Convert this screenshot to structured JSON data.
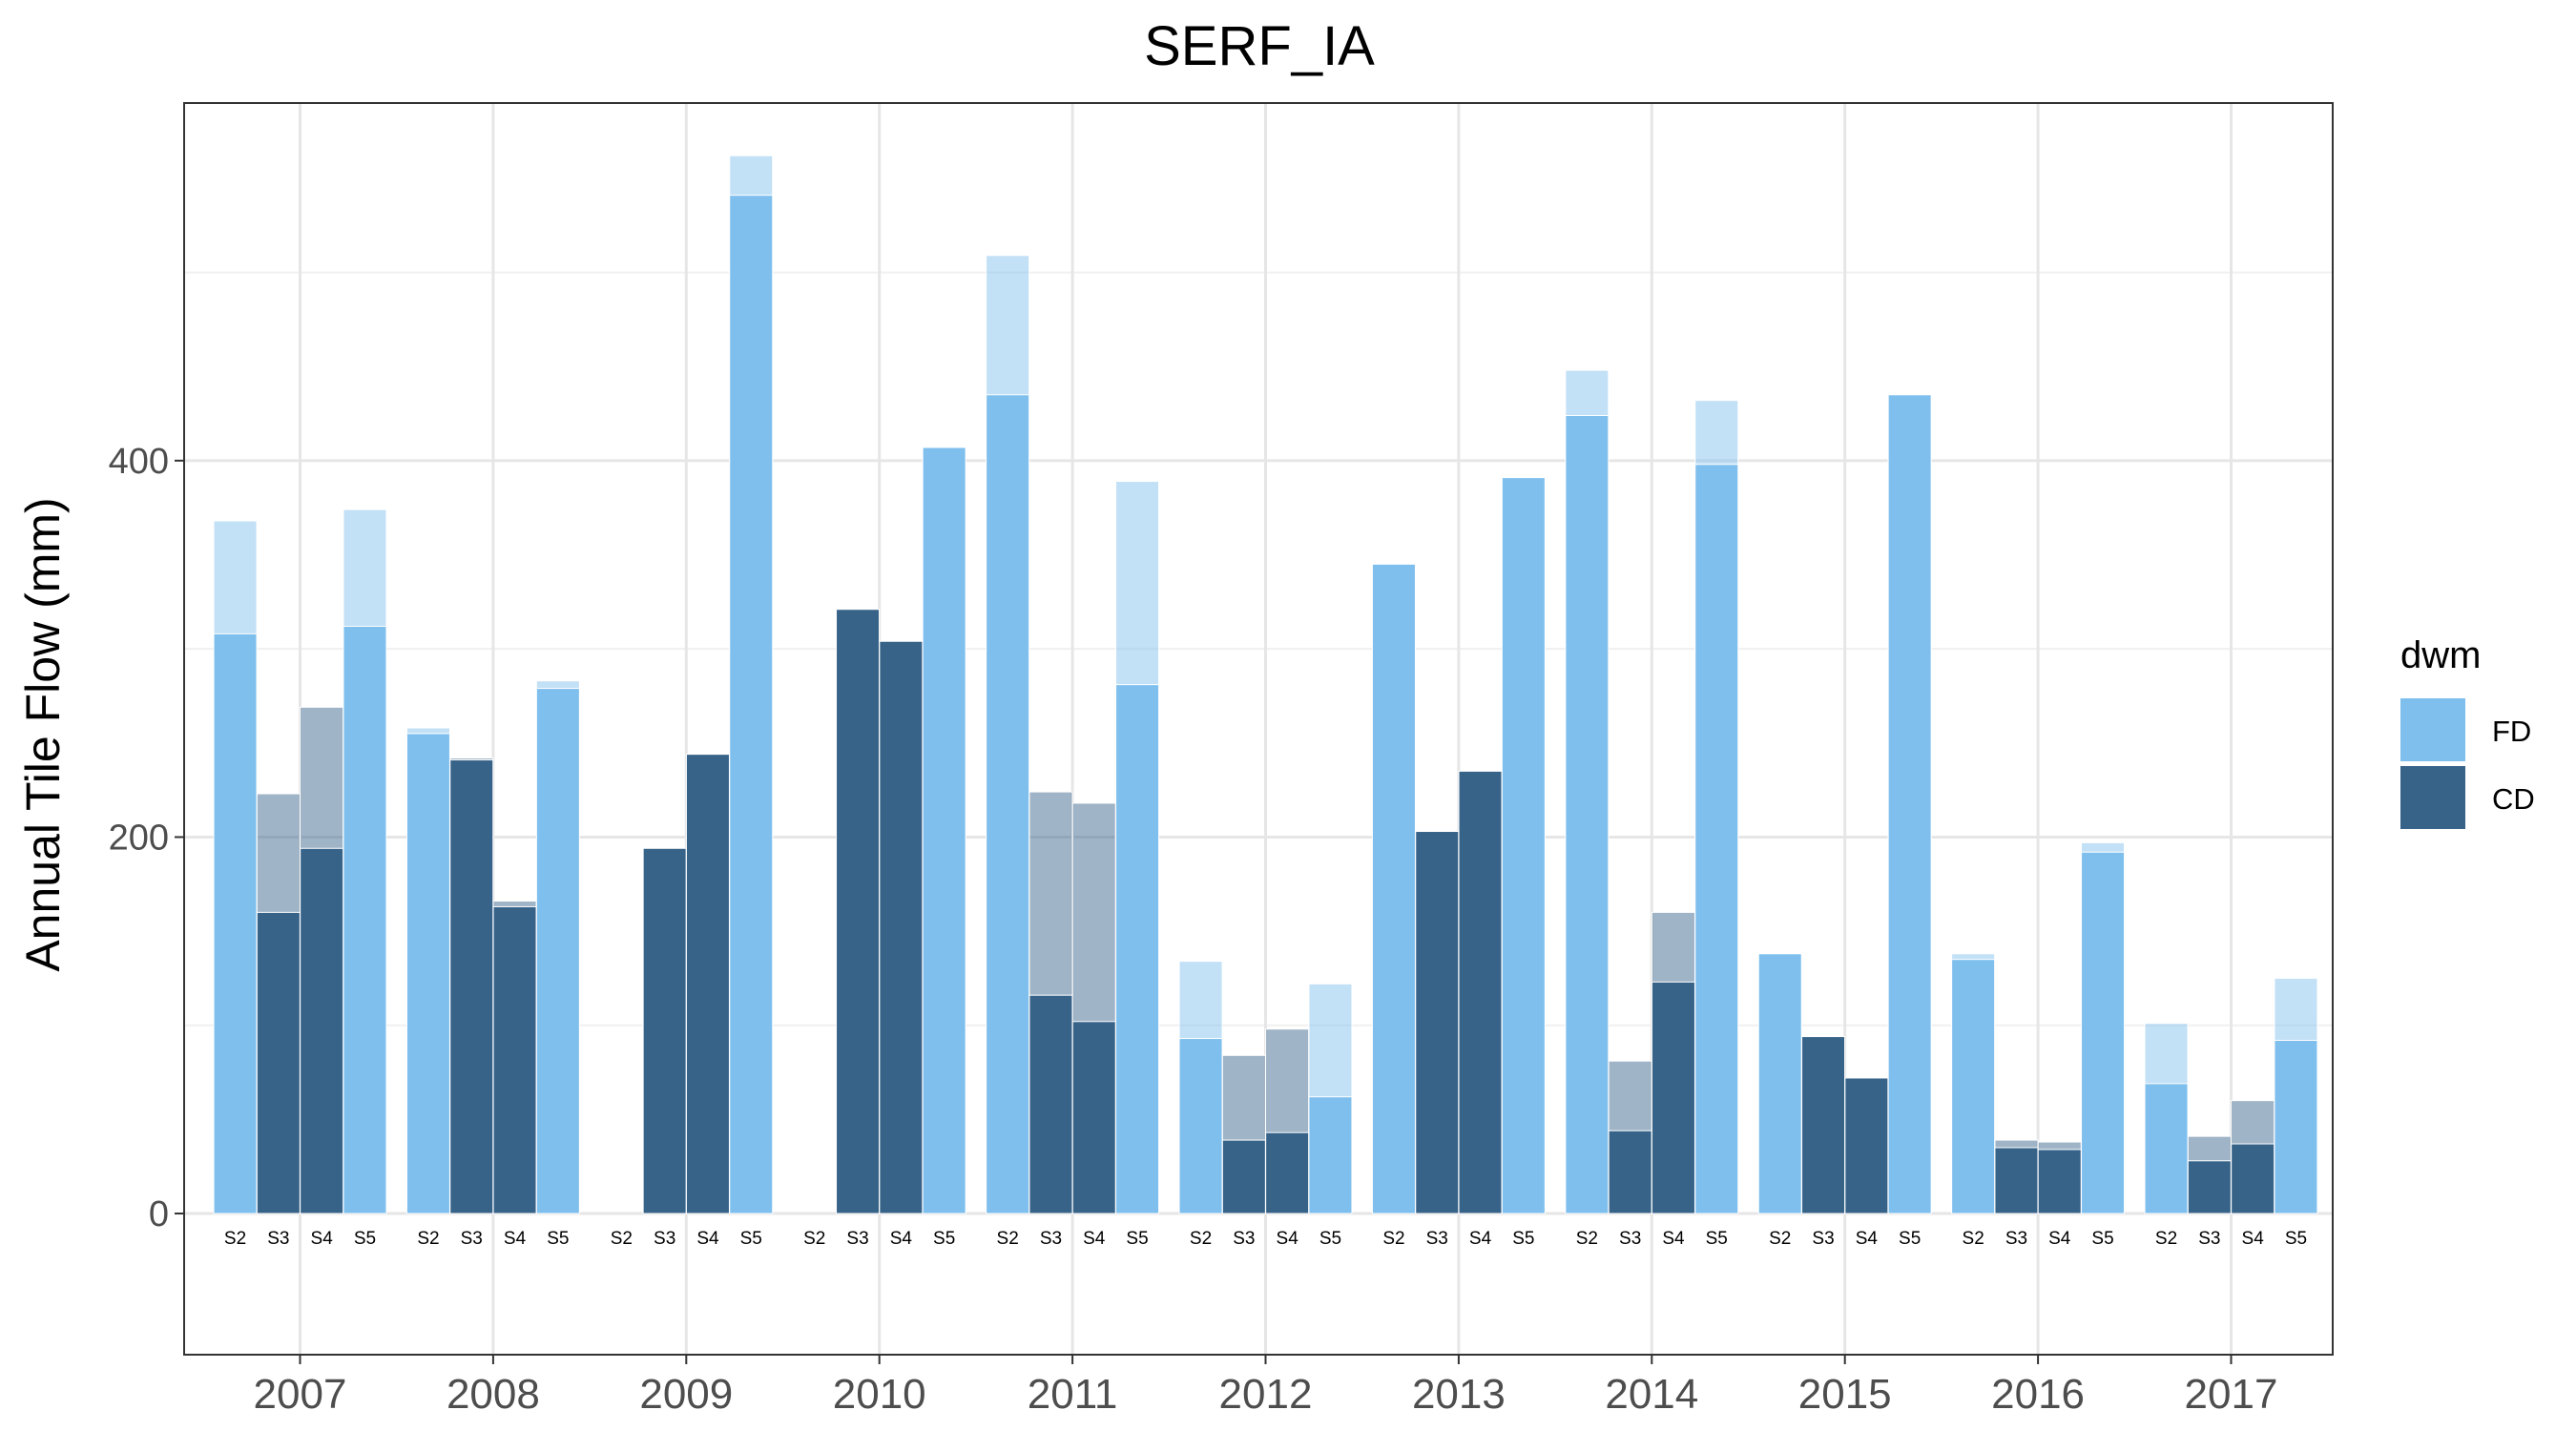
{
  "chart_data": {
    "type": "bar",
    "title": "SERF_IA",
    "xlabel": "",
    "ylabel": "Annual Tile Flow (mm)",
    "ylim": [
      -75,
      590
    ],
    "yticks": [
      0,
      200,
      400
    ],
    "grid": true,
    "legend": {
      "title": "dwm",
      "position": "right",
      "entries": [
        {
          "name": "FD",
          "color": "#7fbfed"
        },
        {
          "name": "CD",
          "color": "#376389"
        }
      ]
    },
    "sites": [
      "S2",
      "S3",
      "S4",
      "S5"
    ],
    "years": [
      {
        "year": "2007",
        "sites": [
          {
            "site": "S2",
            "dwm": "FD",
            "value": 308,
            "outline": 368
          },
          {
            "site": "S3",
            "dwm": "CD",
            "value": 160,
            "outline": 223
          },
          {
            "site": "S4",
            "dwm": "CD",
            "value": 194,
            "outline": 269
          },
          {
            "site": "S5",
            "dwm": "FD",
            "value": 312,
            "outline": 374
          }
        ]
      },
      {
        "year": "2008",
        "sites": [
          {
            "site": "S2",
            "dwm": "FD",
            "value": 255,
            "outline": 258
          },
          {
            "site": "S3",
            "dwm": "CD",
            "value": 241,
            "outline": 242
          },
          {
            "site": "S4",
            "dwm": "CD",
            "value": 163,
            "outline": 166
          },
          {
            "site": "S5",
            "dwm": "FD",
            "value": 279,
            "outline": 283
          }
        ]
      },
      {
        "year": "2009",
        "sites": [
          {
            "site": "S2",
            "dwm": "FD",
            "value": 0,
            "outline": 0
          },
          {
            "site": "S3",
            "dwm": "CD",
            "value": 194,
            "outline": 194
          },
          {
            "site": "S4",
            "dwm": "CD",
            "value": 244,
            "outline": 244
          },
          {
            "site": "S5",
            "dwm": "FD",
            "value": 541,
            "outline": 562
          }
        ]
      },
      {
        "year": "2010",
        "sites": [
          {
            "site": "S2",
            "dwm": "FD",
            "value": 0,
            "outline": 0
          },
          {
            "site": "S3",
            "dwm": "CD",
            "value": 321,
            "outline": 321
          },
          {
            "site": "S4",
            "dwm": "CD",
            "value": 304,
            "outline": 304
          },
          {
            "site": "S5",
            "dwm": "FD",
            "value": 407,
            "outline": 407
          }
        ]
      },
      {
        "year": "2011",
        "sites": [
          {
            "site": "S2",
            "dwm": "FD",
            "value": 435,
            "outline": 509
          },
          {
            "site": "S3",
            "dwm": "CD",
            "value": 116,
            "outline": 224
          },
          {
            "site": "S4",
            "dwm": "CD",
            "value": 102,
            "outline": 218
          },
          {
            "site": "S5",
            "dwm": "FD",
            "value": 281,
            "outline": 389
          }
        ]
      },
      {
        "year": "2012",
        "sites": [
          {
            "site": "S2",
            "dwm": "FD",
            "value": 93,
            "outline": 134
          },
          {
            "site": "S3",
            "dwm": "CD",
            "value": 39,
            "outline": 84
          },
          {
            "site": "S4",
            "dwm": "CD",
            "value": 43,
            "outline": 98
          },
          {
            "site": "S5",
            "dwm": "FD",
            "value": 62,
            "outline": 122
          }
        ]
      },
      {
        "year": "2013",
        "sites": [
          {
            "site": "S2",
            "dwm": "FD",
            "value": 345,
            "outline": 345
          },
          {
            "site": "S3",
            "dwm": "CD",
            "value": 203,
            "outline": 203
          },
          {
            "site": "S4",
            "dwm": "CD",
            "value": 235,
            "outline": 235
          },
          {
            "site": "S5",
            "dwm": "FD",
            "value": 391,
            "outline": 391
          }
        ]
      },
      {
        "year": "2014",
        "sites": [
          {
            "site": "S2",
            "dwm": "FD",
            "value": 424,
            "outline": 448
          },
          {
            "site": "S3",
            "dwm": "CD",
            "value": 44,
            "outline": 81
          },
          {
            "site": "S4",
            "dwm": "CD",
            "value": 123,
            "outline": 160
          },
          {
            "site": "S5",
            "dwm": "FD",
            "value": 398,
            "outline": 432
          }
        ]
      },
      {
        "year": "2015",
        "sites": [
          {
            "site": "S2",
            "dwm": "FD",
            "value": 138,
            "outline": 138
          },
          {
            "site": "S3",
            "dwm": "CD",
            "value": 94,
            "outline": 94
          },
          {
            "site": "S4",
            "dwm": "CD",
            "value": 72,
            "outline": 72
          },
          {
            "site": "S5",
            "dwm": "FD",
            "value": 435,
            "outline": 435
          }
        ]
      },
      {
        "year": "2016",
        "sites": [
          {
            "site": "S2",
            "dwm": "FD",
            "value": 135,
            "outline": 138
          },
          {
            "site": "S3",
            "dwm": "CD",
            "value": 35,
            "outline": 39
          },
          {
            "site": "S4",
            "dwm": "CD",
            "value": 34,
            "outline": 38
          },
          {
            "site": "S5",
            "dwm": "FD",
            "value": 192,
            "outline": 197
          }
        ]
      },
      {
        "year": "2017",
        "sites": [
          {
            "site": "S2",
            "dwm": "FD",
            "value": 69,
            "outline": 101
          },
          {
            "site": "S3",
            "dwm": "CD",
            "value": 28,
            "outline": 41
          },
          {
            "site": "S4",
            "dwm": "CD",
            "value": 37,
            "outline": 60
          },
          {
            "site": "S5",
            "dwm": "FD",
            "value": 92,
            "outline": 125
          }
        ]
      }
    ]
  }
}
